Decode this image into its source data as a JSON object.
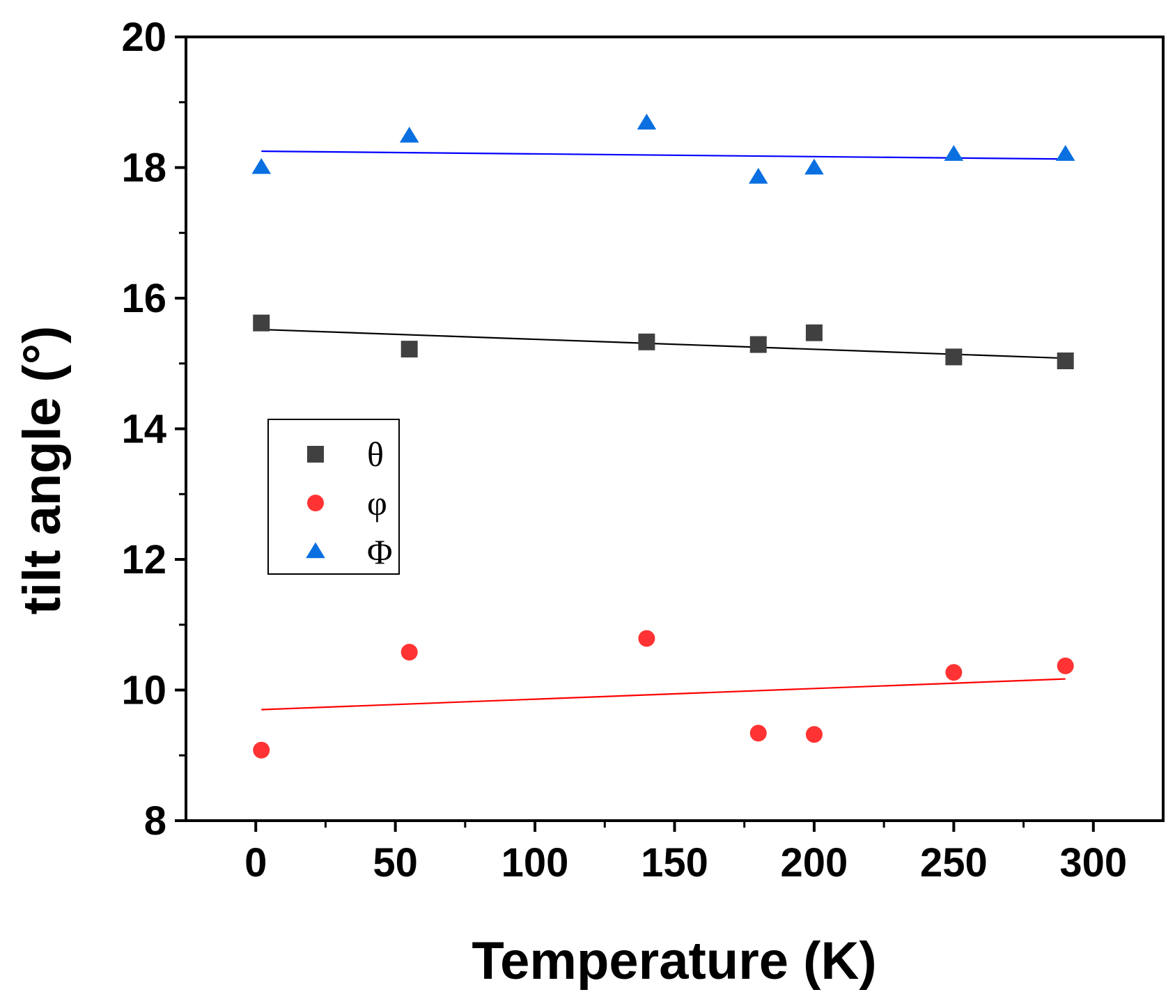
{
  "chart_data": {
    "type": "scatter",
    "title": "",
    "xlabel": "Temperature (K)",
    "ylabel": "tilt angle (°)",
    "xlim": [
      -25,
      325
    ],
    "ylim": [
      8,
      20
    ],
    "xticks": [
      0,
      50,
      100,
      150,
      200,
      250,
      300
    ],
    "yticks": [
      8,
      10,
      12,
      14,
      16,
      18,
      20
    ],
    "grid": false,
    "legend_position": "middle-left",
    "series": [
      {
        "name": "θ",
        "marker": "square",
        "color": "#404040",
        "x": [
          2,
          55,
          140,
          180,
          200,
          250,
          290
        ],
        "y": [
          15.62,
          15.22,
          15.33,
          15.29,
          15.47,
          15.1,
          15.04
        ],
        "fit": {
          "x": [
            2,
            290
          ],
          "y": [
            15.52,
            15.08
          ],
          "color": "#000000"
        }
      },
      {
        "name": "φ",
        "marker": "circle",
        "color": "#ff3333",
        "x": [
          2,
          55,
          140,
          180,
          200,
          250,
          290
        ],
        "y": [
          9.08,
          10.58,
          10.79,
          9.34,
          9.32,
          10.27,
          10.37
        ],
        "fit": {
          "x": [
            2,
            290
          ],
          "y": [
            9.7,
            10.17
          ],
          "color": "#ff0000"
        }
      },
      {
        "name": "Φ",
        "marker": "triangle",
        "color": "#0a6fe0",
        "x": [
          2,
          55,
          140,
          180,
          200,
          250,
          290
        ],
        "y": [
          18.0,
          18.48,
          18.68,
          17.85,
          17.99,
          18.2,
          18.2
        ],
        "fit": {
          "x": [
            2,
            290
          ],
          "y": [
            18.25,
            18.13
          ],
          "color": "#0000ff"
        }
      }
    ]
  }
}
